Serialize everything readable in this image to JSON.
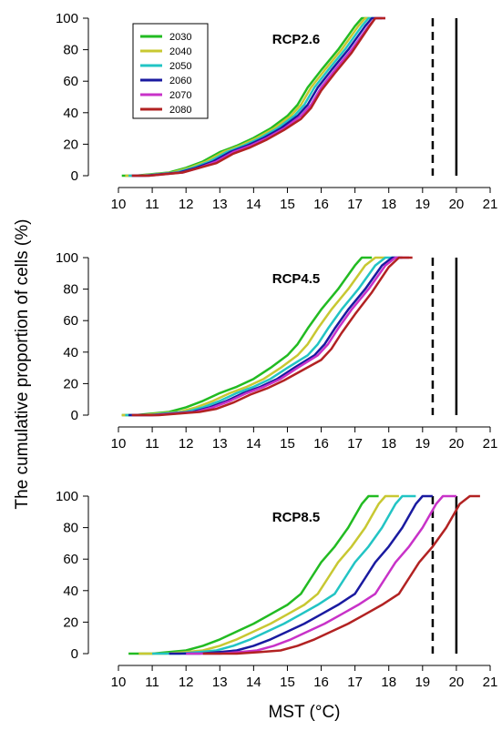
{
  "ylabel": "The cumulative proportion of cells (%)",
  "xlabel": "MST (°C)",
  "chart_data": [
    {
      "type": "line",
      "title": "RCP2.6",
      "xlim": [
        10,
        21
      ],
      "ylim": [
        0,
        100
      ],
      "x_ticks": [
        10,
        11,
        12,
        13,
        14,
        15,
        16,
        17,
        18,
        19,
        20,
        21
      ],
      "y_ticks": [
        0,
        20,
        40,
        60,
        80,
        100
      ],
      "legend": {
        "placement": "top-left",
        "entries": [
          "2030",
          "2040",
          "2050",
          "2060",
          "2070",
          "2080"
        ]
      },
      "reference_lines": [
        {
          "x": 19.3,
          "style": "dashed"
        },
        {
          "x": 20.0,
          "style": "solid"
        }
      ],
      "series": [
        {
          "name": "2030",
          "color": "#22bb22",
          "x": [
            10.1,
            10.5,
            11.0,
            11.5,
            12.0,
            12.5,
            13.0,
            13.5,
            14.0,
            14.5,
            15.0,
            15.3,
            15.6,
            16.0,
            16.5,
            17.0,
            17.2,
            17.4
          ],
          "values": [
            0,
            0,
            1,
            2,
            5,
            9,
            15,
            19,
            24,
            30,
            38,
            45,
            56,
            67,
            80,
            95,
            100,
            100
          ]
        },
        {
          "name": "2040",
          "color": "#c8c832",
          "x": [
            10.2,
            10.6,
            11.1,
            11.6,
            12.1,
            12.6,
            13.1,
            13.6,
            14.1,
            14.6,
            15.1,
            15.4,
            15.7,
            16.1,
            16.6,
            17.1,
            17.3,
            17.5
          ],
          "values": [
            0,
            0,
            1,
            2,
            5,
            9,
            15,
            19,
            24,
            30,
            38,
            45,
            56,
            67,
            80,
            95,
            100,
            100
          ]
        },
        {
          "name": "2050",
          "color": "#22c4c4",
          "x": [
            10.3,
            10.7,
            11.2,
            11.7,
            12.2,
            12.7,
            13.2,
            13.7,
            14.2,
            14.7,
            15.2,
            15.5,
            15.8,
            16.2,
            16.7,
            17.2,
            17.4,
            17.6
          ],
          "values": [
            0,
            0,
            1,
            2,
            5,
            9,
            15,
            19,
            24,
            30,
            38,
            45,
            56,
            67,
            80,
            95,
            100,
            100
          ]
        },
        {
          "name": "2060",
          "color": "#1a1aa0",
          "x": [
            10.4,
            10.8,
            11.3,
            11.8,
            12.3,
            12.8,
            13.3,
            13.8,
            14.3,
            14.8,
            15.3,
            15.6,
            15.9,
            16.3,
            16.8,
            17.3,
            17.5,
            17.8
          ],
          "values": [
            0,
            0,
            1,
            2,
            5,
            9,
            15,
            19,
            24,
            30,
            38,
            45,
            56,
            67,
            80,
            95,
            100,
            100
          ]
        },
        {
          "name": "2070",
          "color": "#c832c8",
          "x": [
            10.4,
            10.9,
            11.4,
            11.9,
            12.4,
            12.9,
            13.4,
            13.9,
            14.4,
            14.9,
            15.4,
            15.7,
            16.0,
            16.4,
            16.9,
            17.4,
            17.6,
            17.9
          ],
          "values": [
            0,
            0,
            1,
            2,
            5,
            9,
            15,
            19,
            24,
            30,
            38,
            45,
            56,
            67,
            80,
            95,
            100,
            100
          ]
        },
        {
          "name": "2080",
          "color": "#b22222",
          "x": [
            10.4,
            10.9,
            11.4,
            11.9,
            12.4,
            12.9,
            13.4,
            13.9,
            14.4,
            14.9,
            15.4,
            15.7,
            16.0,
            16.4,
            16.9,
            17.4,
            17.6,
            17.9
          ],
          "values": [
            0,
            0,
            1,
            2,
            5,
            8,
            14,
            18,
            23,
            29,
            36,
            43,
            54,
            65,
            78,
            94,
            100,
            100
          ]
        }
      ]
    },
    {
      "type": "line",
      "title": "RCP4.5",
      "xlim": [
        10,
        21
      ],
      "ylim": [
        0,
        100
      ],
      "x_ticks": [
        10,
        11,
        12,
        13,
        14,
        15,
        16,
        17,
        18,
        19,
        20,
        21
      ],
      "y_ticks": [
        0,
        20,
        40,
        60,
        80,
        100
      ],
      "reference_lines": [
        {
          "x": 19.3,
          "style": "dashed"
        },
        {
          "x": 20.0,
          "style": "solid"
        }
      ],
      "series": [
        {
          "name": "2030",
          "color": "#22bb22",
          "x": [
            10.1,
            10.5,
            11.0,
            11.5,
            12.0,
            12.5,
            13.0,
            13.5,
            14.0,
            14.5,
            15.0,
            15.3,
            15.6,
            16.0,
            16.5,
            17.0,
            17.2,
            17.5
          ],
          "values": [
            0,
            0,
            1,
            2,
            5,
            9,
            14,
            18,
            23,
            30,
            38,
            45,
            55,
            67,
            80,
            95,
            100,
            100
          ]
        },
        {
          "name": "2040",
          "color": "#c8c832",
          "x": [
            10.1,
            10.7,
            11.2,
            11.8,
            12.3,
            12.8,
            13.3,
            13.8,
            14.3,
            14.8,
            15.3,
            15.6,
            15.9,
            16.3,
            16.8,
            17.3,
            17.6,
            17.9
          ],
          "values": [
            0,
            0,
            1,
            2,
            5,
            9,
            14,
            18,
            23,
            30,
            38,
            45,
            55,
            67,
            80,
            95,
            100,
            100
          ]
        },
        {
          "name": "2050",
          "color": "#22c4c4",
          "x": [
            10.2,
            10.9,
            11.4,
            12.0,
            12.5,
            13.0,
            13.5,
            14.0,
            14.5,
            15.0,
            15.6,
            15.9,
            16.2,
            16.6,
            17.1,
            17.6,
            17.9,
            18.2
          ],
          "values": [
            0,
            0,
            1,
            2,
            5,
            9,
            14,
            18,
            23,
            30,
            38,
            45,
            55,
            67,
            80,
            95,
            100,
            100
          ]
        },
        {
          "name": "2060",
          "color": "#1a1aa0",
          "x": [
            10.3,
            11.0,
            11.6,
            12.2,
            12.7,
            13.2,
            13.7,
            14.2,
            14.7,
            15.2,
            15.8,
            16.1,
            16.4,
            16.8,
            17.3,
            17.8,
            18.1,
            18.4
          ],
          "values": [
            0,
            0,
            1,
            2,
            5,
            9,
            14,
            18,
            23,
            30,
            38,
            45,
            55,
            67,
            80,
            95,
            100,
            100
          ]
        },
        {
          "name": "2070",
          "color": "#c832c8",
          "x": [
            10.4,
            11.1,
            11.7,
            12.3,
            12.8,
            13.3,
            13.8,
            14.3,
            14.8,
            15.3,
            15.9,
            16.2,
            16.5,
            16.9,
            17.4,
            17.9,
            18.2,
            18.6
          ],
          "values": [
            0,
            0,
            1,
            2,
            5,
            9,
            14,
            18,
            23,
            30,
            38,
            45,
            55,
            67,
            80,
            95,
            100,
            100
          ]
        },
        {
          "name": "2080",
          "color": "#b22222",
          "x": [
            10.4,
            11.2,
            11.8,
            12.4,
            12.9,
            13.4,
            13.9,
            14.4,
            14.9,
            15.4,
            16.0,
            16.3,
            16.6,
            17.0,
            17.5,
            18.0,
            18.3,
            18.7
          ],
          "values": [
            0,
            0,
            1,
            2,
            4,
            8,
            13,
            17,
            22,
            28,
            35,
            42,
            52,
            64,
            78,
            94,
            100,
            100
          ]
        }
      ]
    },
    {
      "type": "line",
      "title": "RCP8.5",
      "xlim": [
        10,
        21
      ],
      "ylim": [
        0,
        100
      ],
      "x_ticks": [
        10,
        11,
        12,
        13,
        14,
        15,
        16,
        17,
        18,
        19,
        20,
        21
      ],
      "y_ticks": [
        0,
        20,
        40,
        60,
        80,
        100
      ],
      "reference_lines": [
        {
          "x": 19.3,
          "style": "dashed"
        },
        {
          "x": 20.0,
          "style": "solid"
        }
      ],
      "series": [
        {
          "name": "2030",
          "color": "#22bb22",
          "x": [
            10.3,
            11.0,
            11.5,
            12.0,
            12.5,
            13.0,
            13.5,
            14.0,
            14.5,
            15.0,
            15.4,
            15.7,
            16.0,
            16.4,
            16.8,
            17.2,
            17.4,
            17.7
          ],
          "values": [
            0,
            0,
            1,
            2,
            5,
            9,
            14,
            19,
            25,
            31,
            38,
            48,
            58,
            68,
            80,
            95,
            100,
            100
          ]
        },
        {
          "name": "2040",
          "color": "#c8c832",
          "x": [
            10.6,
            11.4,
            12.0,
            12.5,
            13.0,
            13.5,
            14.0,
            14.5,
            15.0,
            15.5,
            15.9,
            16.2,
            16.5,
            16.9,
            17.3,
            17.7,
            17.9,
            18.3
          ],
          "values": [
            0,
            0,
            1,
            2,
            5,
            9,
            14,
            19,
            25,
            31,
            38,
            48,
            58,
            68,
            80,
            95,
            100,
            100
          ]
        },
        {
          "name": "2050",
          "color": "#22c4c4",
          "x": [
            11.0,
            11.8,
            12.4,
            12.9,
            13.4,
            13.9,
            14.4,
            14.9,
            15.4,
            15.9,
            16.4,
            16.7,
            17.0,
            17.4,
            17.8,
            18.2,
            18.4,
            18.8
          ],
          "values": [
            0,
            0,
            1,
            2,
            5,
            9,
            14,
            19,
            25,
            31,
            38,
            48,
            58,
            68,
            80,
            95,
            100,
            100
          ]
        },
        {
          "name": "2060",
          "color": "#1a1aa0",
          "x": [
            11.5,
            12.4,
            13.0,
            13.5,
            14.0,
            14.5,
            15.0,
            15.5,
            16.0,
            16.5,
            17.0,
            17.3,
            17.6,
            18.0,
            18.4,
            18.8,
            19.0,
            19.3
          ],
          "values": [
            0,
            0,
            1,
            2,
            5,
            9,
            14,
            19,
            25,
            31,
            38,
            48,
            58,
            68,
            80,
            95,
            100,
            100
          ]
        },
        {
          "name": "2070",
          "color": "#c832c8",
          "x": [
            12.0,
            13.0,
            13.6,
            14.1,
            14.6,
            15.1,
            15.6,
            16.1,
            16.6,
            17.1,
            17.6,
            17.9,
            18.2,
            18.6,
            19.0,
            19.4,
            19.6,
            20.0
          ],
          "values": [
            0,
            0,
            1,
            2,
            5,
            9,
            14,
            19,
            25,
            31,
            38,
            48,
            58,
            68,
            80,
            95,
            100,
            100
          ]
        },
        {
          "name": "2080",
          "color": "#b22222",
          "x": [
            12.5,
            13.5,
            14.2,
            14.8,
            15.3,
            15.8,
            16.3,
            16.8,
            17.3,
            17.8,
            18.3,
            18.6,
            18.9,
            19.3,
            19.7,
            20.1,
            20.4,
            20.7
          ],
          "values": [
            0,
            0,
            1,
            2,
            5,
            9,
            14,
            19,
            25,
            31,
            38,
            48,
            58,
            68,
            80,
            95,
            100,
            100
          ]
        }
      ]
    }
  ]
}
